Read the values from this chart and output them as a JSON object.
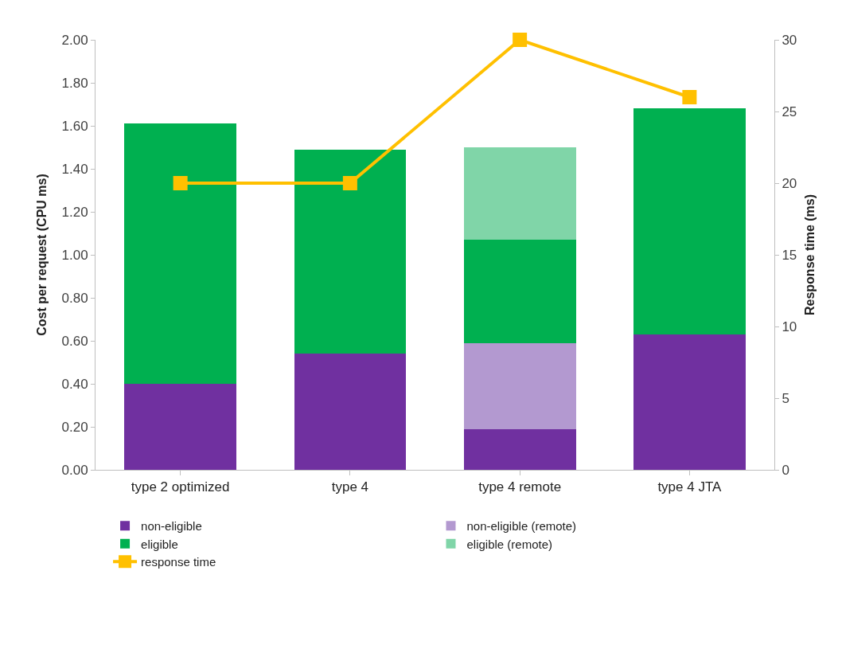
{
  "chart_data": {
    "type": "bar",
    "stacked": true,
    "ylabel": "Cost per request (CPU ms)",
    "y2label": "Response time (ms)",
    "categories": [
      "type 2 optimized",
      "type 4",
      "type 4 remote",
      "type 4 JTA"
    ],
    "series": [
      {
        "name": "non-eligible",
        "color": "#7030a0",
        "values": [
          0.4,
          0.54,
          0.19,
          0.63
        ]
      },
      {
        "name": "non-eligible (remote)",
        "color": "#b399d0",
        "values": [
          null,
          null,
          0.4,
          null
        ]
      },
      {
        "name": "eligible",
        "color": "#00b050",
        "values": [
          1.21,
          0.95,
          0.48,
          1.05
        ]
      },
      {
        "name": "eligible (remote)",
        "color": "#80d5a8",
        "values": [
          null,
          null,
          0.43,
          null
        ]
      },
      {
        "name": "response time",
        "type": "line",
        "axis": "y2",
        "color": "#ffc000",
        "marker": "square",
        "values": [
          20,
          20,
          30,
          26
        ]
      }
    ],
    "ylim": [
      0,
      2
    ],
    "yticks": [
      {
        "value": 0,
        "label": "0.00"
      },
      {
        "value": 0.2,
        "label": "0.20"
      },
      {
        "value": 0.4,
        "label": "0.40"
      },
      {
        "value": 0.6,
        "label": "0.60"
      },
      {
        "value": 0.8,
        "label": "0.80"
      },
      {
        "value": 1,
        "label": "1.00"
      },
      {
        "value": 1.2,
        "label": "1.20"
      },
      {
        "value": 1.4,
        "label": "1.40"
      },
      {
        "value": 1.6,
        "label": "1.60"
      },
      {
        "value": 1.8,
        "label": "1.80"
      },
      {
        "value": 2,
        "label": "2.00"
      }
    ],
    "y2lim": [
      0,
      30
    ],
    "y2ticks": [
      0,
      5,
      10,
      15,
      20,
      25,
      30
    ],
    "grid": false,
    "legend": "bottom"
  }
}
